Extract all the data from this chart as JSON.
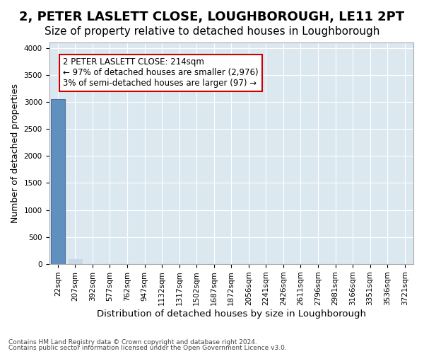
{
  "title": "2, PETER LASLETT CLOSE, LOUGHBOROUGH, LE11 2PT",
  "subtitle": "Size of property relative to detached houses in Loughborough",
  "xlabel": "Distribution of detached houses by size in Loughborough",
  "ylabel": "Number of detached properties",
  "footnote1": "Contains HM Land Registry data © Crown copyright and database right 2024.",
  "footnote2": "Contains public sector information licensed under the Open Government Licence v3.0.",
  "bin_labels": [
    "22sqm",
    "207sqm",
    "392sqm",
    "577sqm",
    "762sqm",
    "947sqm",
    "1132sqm",
    "1317sqm",
    "1502sqm",
    "1687sqm",
    "1872sqm",
    "2056sqm",
    "2241sqm",
    "2426sqm",
    "2611sqm",
    "2796sqm",
    "2981sqm",
    "3166sqm",
    "3351sqm",
    "3536sqm",
    "3721sqm"
  ],
  "values": [
    3050,
    97,
    0,
    0,
    0,
    0,
    0,
    0,
    0,
    0,
    0,
    0,
    0,
    0,
    0,
    0,
    0,
    0,
    0,
    0,
    0
  ],
  "highlight_bin_index": 0,
  "property_label": "2 PETER LASLETT CLOSE: 214sqm",
  "pct_smaller": 97,
  "count_smaller": 2976,
  "pct_larger": 3,
  "count_larger": 97,
  "bar_color_normal": "#c8d8e8",
  "bar_color_highlight": "#6090c0",
  "bar_edge_color": "#5070a0",
  "annotation_box_color": "#cc0000",
  "ylim": [
    0,
    4100
  ],
  "yticks": [
    0,
    500,
    1000,
    1500,
    2000,
    2500,
    3000,
    3500,
    4000
  ],
  "grid_color": "#ffffff",
  "bg_color": "#dce8f0",
  "title_fontsize": 13,
  "subtitle_fontsize": 11,
  "axis_label_fontsize": 9,
  "tick_fontsize": 7.5,
  "annotation_fontsize": 8.5
}
